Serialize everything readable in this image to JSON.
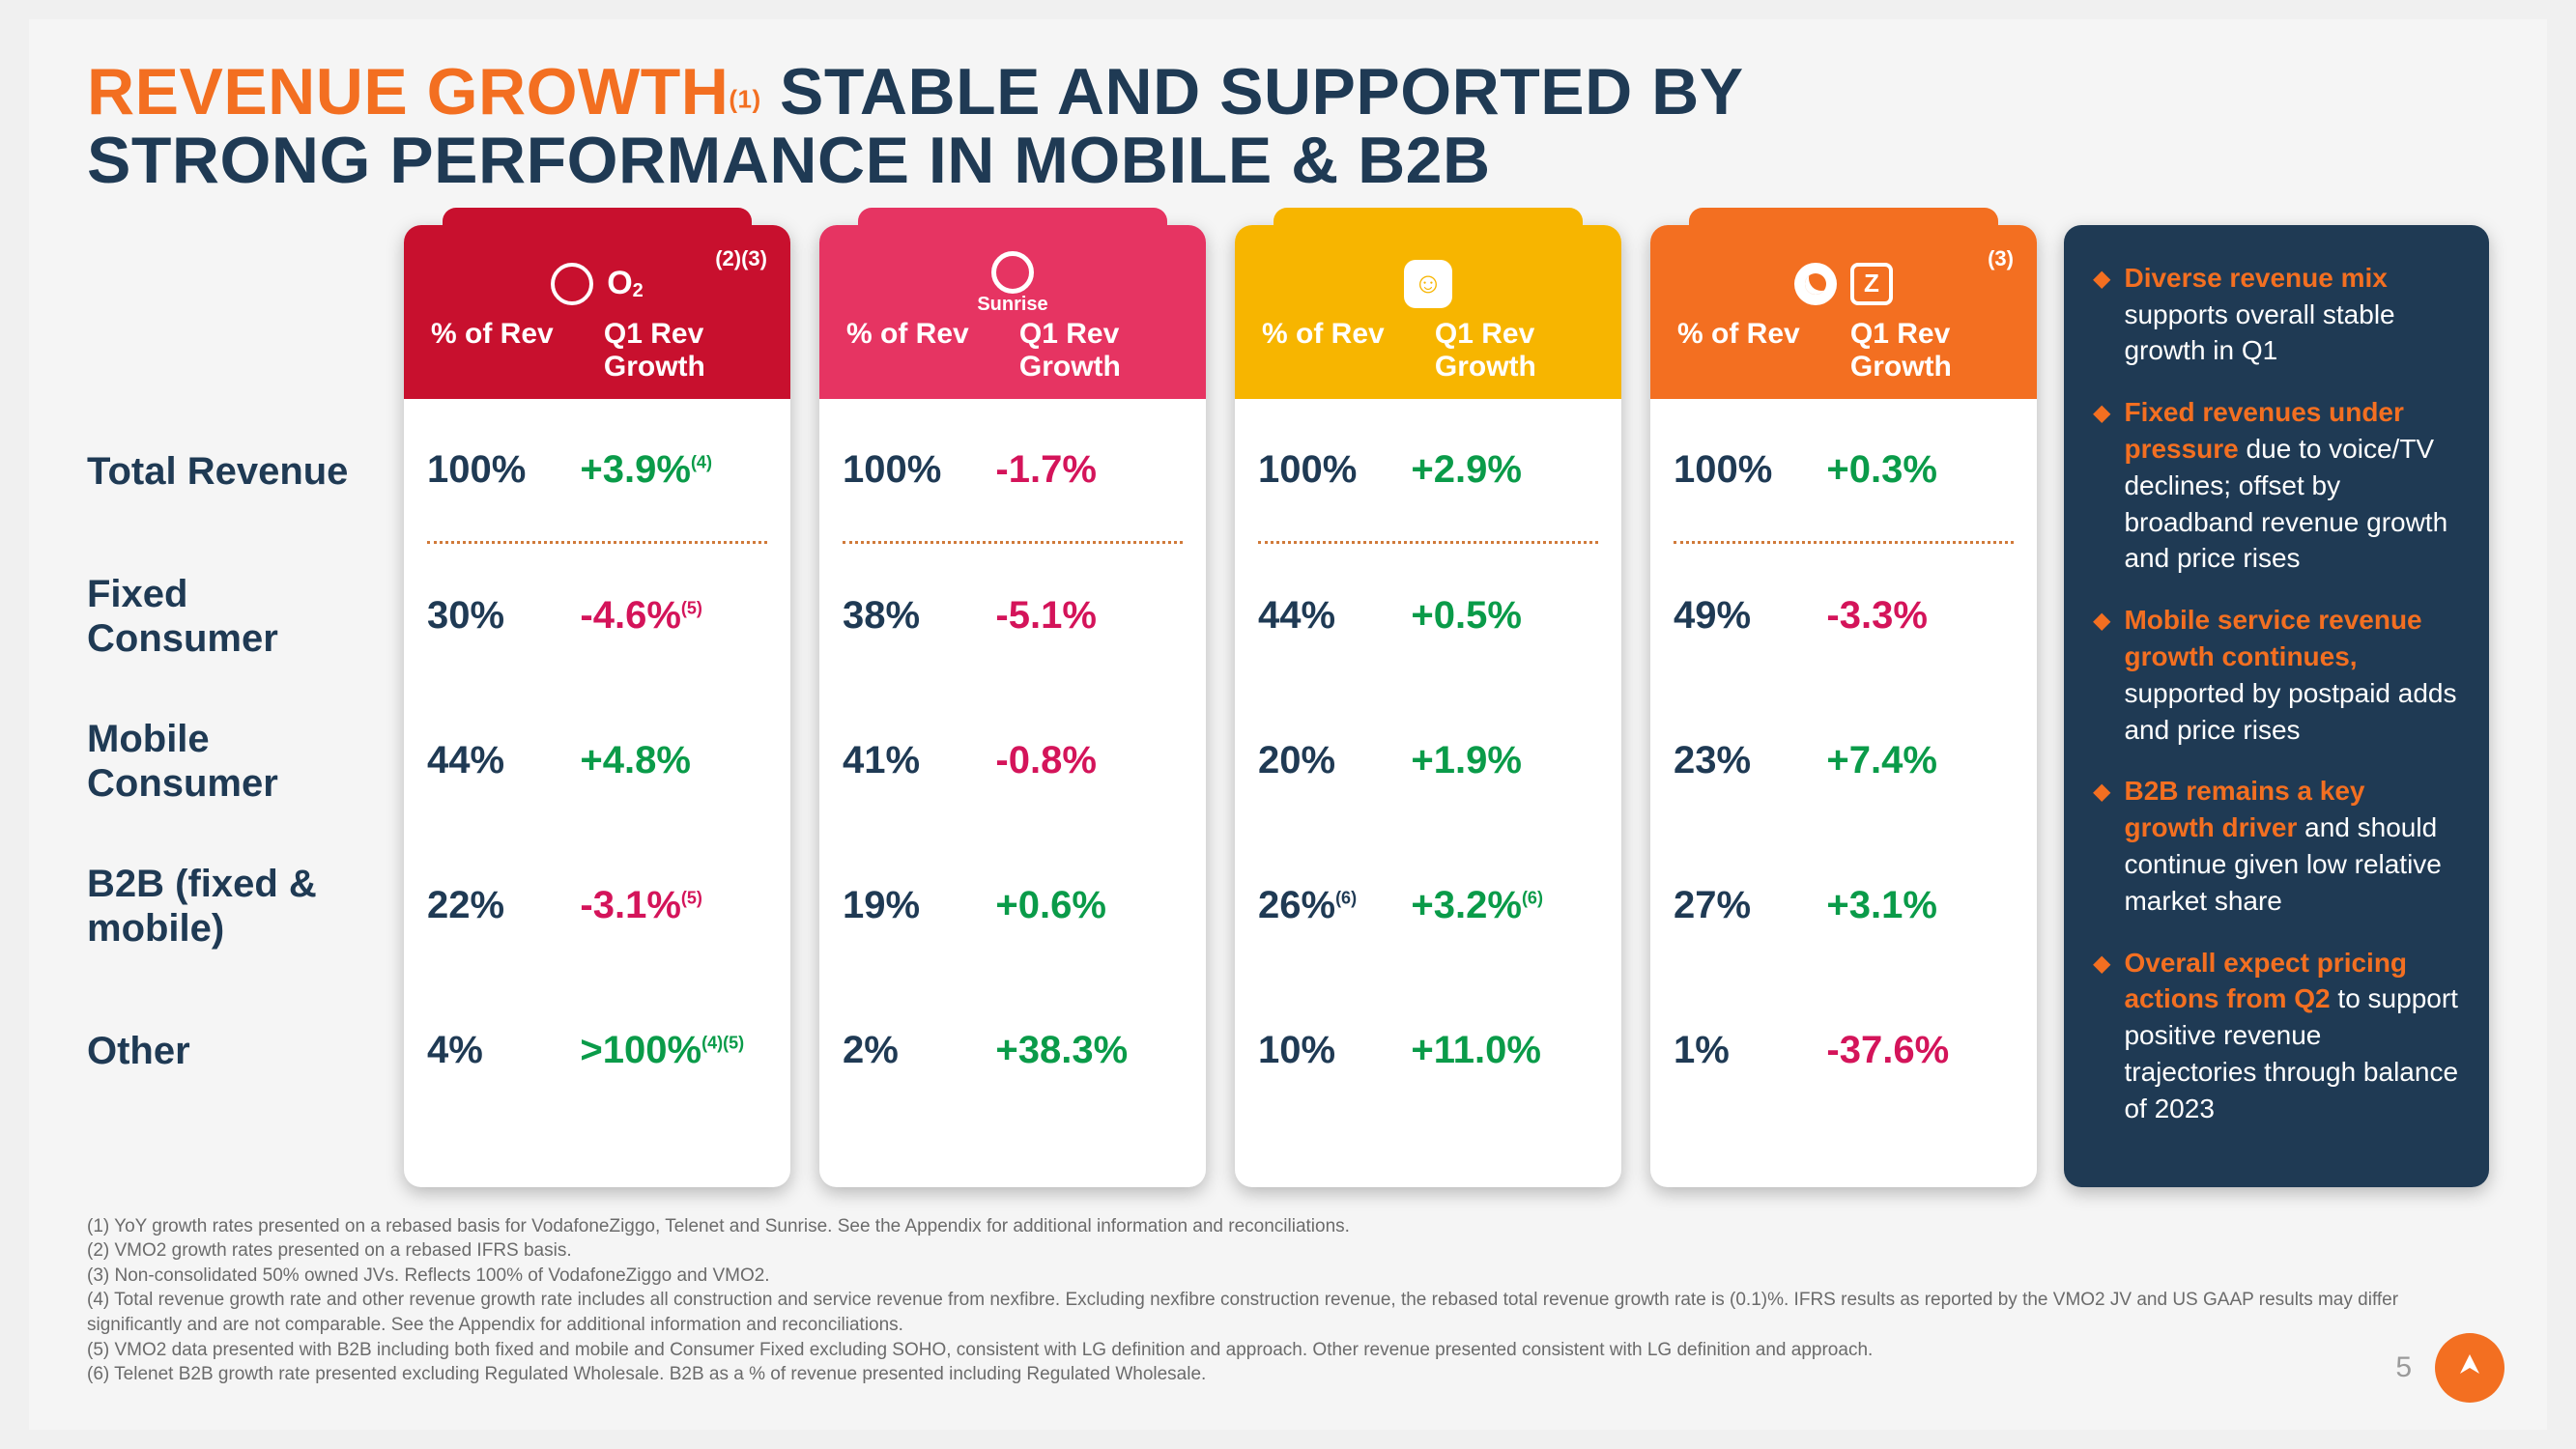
{
  "title": {
    "orange": "REVENUE GROWTH",
    "sup": "(1)",
    "rest1": " STABLE AND SUPPORTED BY",
    "rest2": "STRONG PERFORMANCE IN MOBILE & B2B"
  },
  "columns": {
    "left": "% of Rev",
    "right": "Q1 Rev Growth"
  },
  "row_labels": [
    "Total Revenue",
    "Fixed Consumer",
    "Mobile Consumer",
    "B2B (fixed & mobile)",
    "Other"
  ],
  "cards": [
    {
      "brand": "virgin-o2",
      "header_class": "bg-red",
      "sup": "(2)(3)",
      "rows": [
        {
          "pct": "100%",
          "g": "+3.9%",
          "gs": "(4)",
          "cls": "pos"
        },
        {
          "pct": "30%",
          "g": "-4.6%",
          "gs": "(5)",
          "cls": "neg"
        },
        {
          "pct": "44%",
          "g": "+4.8%",
          "cls": "pos"
        },
        {
          "pct": "22%",
          "g": "-3.1%",
          "gs": "(5)",
          "cls": "neg"
        },
        {
          "pct": "4%",
          "g": ">100%",
          "gs": "(4)(5)",
          "cls": "pos"
        }
      ]
    },
    {
      "brand": "sunrise",
      "header_class": "bg-pink",
      "sunrise_label": "Sunrise",
      "rows": [
        {
          "pct": "100%",
          "g": "-1.7%",
          "cls": "neg"
        },
        {
          "pct": "38%",
          "g": "-5.1%",
          "cls": "neg"
        },
        {
          "pct": "41%",
          "g": "-0.8%",
          "cls": "neg"
        },
        {
          "pct": "19%",
          "g": "+0.6%",
          "cls": "pos"
        },
        {
          "pct": "2%",
          "g": "+38.3%",
          "cls": "pos"
        }
      ]
    },
    {
      "brand": "telenet",
      "header_class": "bg-yellow",
      "rows": [
        {
          "pct": "100%",
          "g": "+2.9%",
          "cls": "pos"
        },
        {
          "pct": "44%",
          "g": "+0.5%",
          "cls": "pos"
        },
        {
          "pct": "20%",
          "g": "+1.9%",
          "cls": "pos"
        },
        {
          "pct": "26%",
          "ps": "(6)",
          "g": "+3.2%",
          "gs": "(6)",
          "cls": "pos"
        },
        {
          "pct": "10%",
          "g": "+11.0%",
          "cls": "pos"
        }
      ]
    },
    {
      "brand": "vodafone-ziggo",
      "header_class": "bg-orange",
      "sup": "(3)",
      "rows": [
        {
          "pct": "100%",
          "g": "+0.3%",
          "cls": "pos"
        },
        {
          "pct": "49%",
          "g": "-3.3%",
          "cls": "neg"
        },
        {
          "pct": "23%",
          "g": "+7.4%",
          "cls": "pos"
        },
        {
          "pct": "27%",
          "g": "+3.1%",
          "cls": "pos"
        },
        {
          "pct": "1%",
          "g": "-37.6%",
          "cls": "neg"
        }
      ]
    }
  ],
  "sidebar": [
    {
      "b": "Diverse revenue mix",
      "t": " supports overall stable growth in Q1"
    },
    {
      "b": "Fixed revenues under pressure",
      "t": " due to voice/TV declines; offset by broadband revenue growth and price rises"
    },
    {
      "b": "Mobile service revenue growth continues,",
      "t": " supported by postpaid adds and price rises"
    },
    {
      "b": "B2B remains a key growth driver",
      "t": " and should continue given low relative market share"
    },
    {
      "b": "Overall expect pricing actions from Q2",
      "t": " to support positive revenue trajectories through balance of 2023"
    }
  ],
  "footnotes": [
    "(1) YoY growth rates presented on a rebased basis for VodafoneZiggo, Telenet and Sunrise. See the Appendix for additional information and reconciliations.",
    "(2) VMO2 growth rates presented on a rebased IFRS basis.",
    "(3) Non-consolidated 50% owned JVs. Reflects 100% of VodafoneZiggo and VMO2.",
    "(4) Total revenue growth rate and other revenue growth rate includes all construction and service revenue from nexfibre. Excluding nexfibre construction revenue, the rebased total revenue growth rate is (0.1)%. IFRS results as reported by the VMO2 JV and US GAAP results may differ significantly and are not comparable. See the Appendix for additional information and reconciliations.",
    "(5) VMO2 data presented with B2B including both fixed and mobile and Consumer Fixed excluding SOHO, consistent with LG definition and approach. Other revenue presented consistent with LG definition and approach.",
    "(6) Telenet B2B growth rate presented excluding Regulated Wholesale. B2B as a % of revenue presented including Regulated Wholesale."
  ],
  "page_number": "5"
}
